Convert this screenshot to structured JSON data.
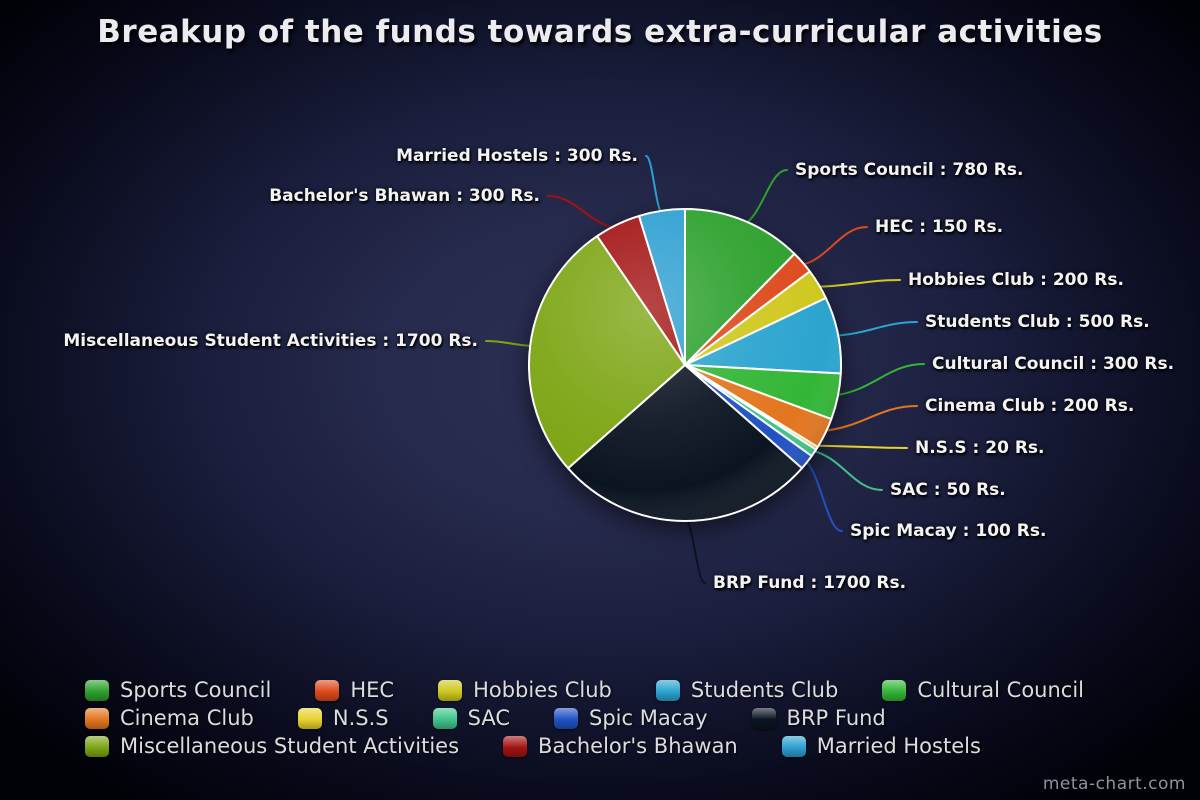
{
  "title": "Breakup of the funds towards extra-curricular activities",
  "watermark": "meta-chart.com",
  "chart_data": {
    "type": "pie",
    "title": "Breakup of the funds towards extra-curricular activities",
    "unit": "Rs.",
    "total": 6300,
    "start_angle_deg": 0,
    "direction": "clockwise",
    "legend_position": "bottom",
    "slices": [
      {
        "label": "Sports Council",
        "value": 780,
        "color": "#2da12d",
        "callout": "Sports Council : 780 Rs."
      },
      {
        "label": "HEC",
        "value": 150,
        "color": "#dd4a1c",
        "callout": "HEC : 150 Rs."
      },
      {
        "label": "Hobbies Club",
        "value": 200,
        "color": "#cfc81f",
        "callout": "Hobbies Club : 200 Rs."
      },
      {
        "label": "Students Club",
        "value": 500,
        "color": "#2ba4cf",
        "callout": "Students Club : 500 Rs."
      },
      {
        "label": "Cultural Council",
        "value": 300,
        "color": "#33b636",
        "callout": "Cultural Council : 300 Rs."
      },
      {
        "label": "Cinema Club",
        "value": 200,
        "color": "#e3761f",
        "callout": "Cinema Club : 200 Rs."
      },
      {
        "label": "N.S.S",
        "value": 20,
        "color": "#e8d22e",
        "callout": "N.S.S : 20 Rs."
      },
      {
        "label": "SAC",
        "value": 50,
        "color": "#3fc48c",
        "callout": "SAC : 50 Rs."
      },
      {
        "label": "Spic Macay",
        "value": 100,
        "color": "#2151c4",
        "callout": "Spic Macay : 100 Rs."
      },
      {
        "label": "BRP Fund",
        "value": 1700,
        "color": "#0b1522",
        "callout": "BRP Fund : 1700 Rs."
      },
      {
        "label": "Miscellaneous Student Activities",
        "value": 1700,
        "color": "#7da514",
        "callout": "Miscellaneous Student Activities : 1700 Rs."
      },
      {
        "label": "Bachelor's Bhawan",
        "value": 300,
        "color": "#a31212",
        "callout": "Bachelor's Bhawan : 300 Rs."
      },
      {
        "label": "Married Hostels",
        "value": 300,
        "color": "#2d9fd1",
        "callout": "Married Hostels : 300 Rs."
      }
    ]
  }
}
